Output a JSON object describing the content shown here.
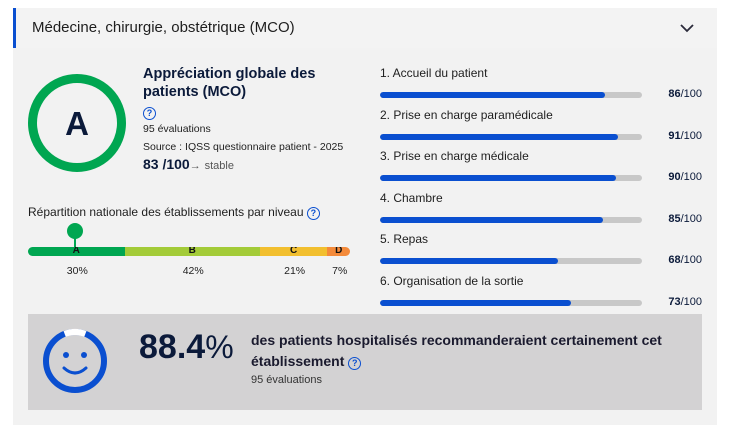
{
  "header": {
    "title": "Médecine, chirurgie, obstétrique (MCO)",
    "toggle_icon": "chevron-down-icon"
  },
  "grade": {
    "letter": "A",
    "color": "#00a651",
    "title": "Appréciation globale des patients (MCO)",
    "help_icon": "?",
    "evaluations": "95 évaluations",
    "source": "Source : IQSS questionnaire patient - 2025",
    "score": "83",
    "score_max": "/100",
    "trend_arrow": "→",
    "trend": "stable"
  },
  "distribution": {
    "title": "Répartition nationale des établissements par niveau",
    "help_icon": "?",
    "segments": [
      {
        "label": "A",
        "pct_text": "30%",
        "value": 30,
        "color": "#00a651"
      },
      {
        "label": "B",
        "pct_text": "42%",
        "value": 42,
        "color": "#a3cb38"
      },
      {
        "label": "C",
        "pct_text": "21%",
        "value": 21,
        "color": "#f2bf2f"
      },
      {
        "label": "D",
        "pct_text": "7%",
        "value": 7,
        "color": "#f48a3a"
      }
    ],
    "marker_level": "A"
  },
  "criteria": [
    {
      "label": "1. Accueil du patient",
      "value": 86,
      "value_text": "86",
      "max_text": "/100"
    },
    {
      "label": "2. Prise en charge paramédicale",
      "value": 91,
      "value_text": "91",
      "max_text": "/100"
    },
    {
      "label": "3. Prise en charge médicale",
      "value": 90,
      "value_text": "90",
      "max_text": "/100"
    },
    {
      "label": "4. Chambre",
      "value": 85,
      "value_text": "85",
      "max_text": "/100"
    },
    {
      "label": "5. Repas",
      "value": 68,
      "value_text": "68",
      "max_text": "/100"
    },
    {
      "label": "6. Organisation de la sortie",
      "value": 73,
      "value_text": "73",
      "max_text": "/100"
    }
  ],
  "recommendation": {
    "value": "88.4",
    "percent_sign": "%",
    "text": "des patients hospitalisés recommanderaient certainement cet établissement",
    "help_icon": "?",
    "evaluations": "95 évaluations",
    "icon": "smiley-icon",
    "fraction": 0.884
  },
  "colors": {
    "accent": "#0a4fd0",
    "track": "#c8c8c8",
    "grade": "#00a651"
  }
}
